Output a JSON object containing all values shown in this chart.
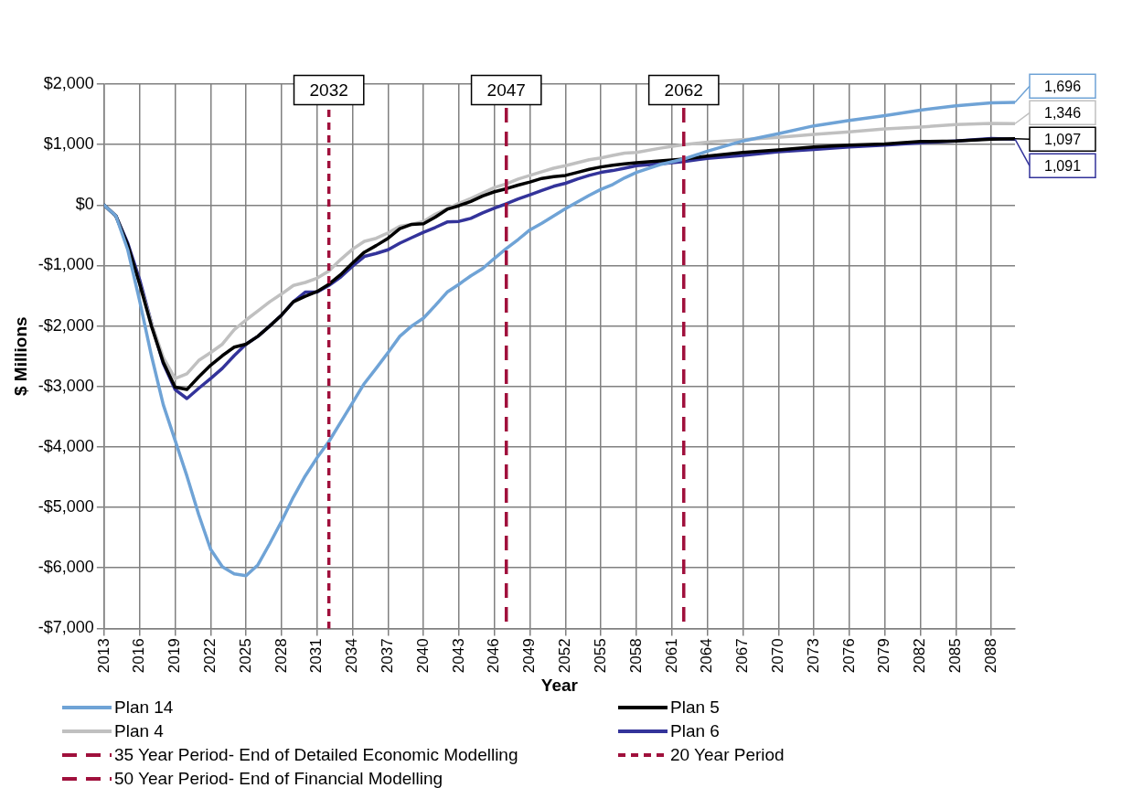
{
  "chart_data": {
    "type": "line",
    "xlabel": "Year",
    "ylabel": "$ Millions",
    "x": [
      2013,
      2014,
      2015,
      2016,
      2017,
      2018,
      2019,
      2020,
      2021,
      2022,
      2023,
      2024,
      2025,
      2026,
      2027,
      2028,
      2029,
      2030,
      2031,
      2032,
      2033,
      2034,
      2035,
      2036,
      2037,
      2038,
      2039,
      2040,
      2041,
      2042,
      2043,
      2044,
      2045,
      2046,
      2047,
      2048,
      2049,
      2050,
      2051,
      2052,
      2053,
      2054,
      2055,
      2056,
      2057,
      2058,
      2060,
      2062,
      2064,
      2067,
      2070,
      2073,
      2076,
      2079,
      2082,
      2085,
      2088,
      2090
    ],
    "series": [
      {
        "name": "Plan 14",
        "color": "#6fa3d6",
        "values": [
          0,
          -180,
          -740,
          -1580,
          -2490,
          -3300,
          -3890,
          -4480,
          -5120,
          -5690,
          -5980,
          -6100,
          -6130,
          -5950,
          -5600,
          -5230,
          -4830,
          -4480,
          -4180,
          -3910,
          -3590,
          -3270,
          -2950,
          -2700,
          -2440,
          -2170,
          -2000,
          -1870,
          -1660,
          -1440,
          -1310,
          -1170,
          -1050,
          -880,
          -720,
          -570,
          -410,
          -300,
          -180,
          -60,
          50,
          160,
          260,
          340,
          450,
          540,
          670,
          760,
          890,
          1060,
          1180,
          1310,
          1400,
          1480,
          1570,
          1640,
          1690,
          1696
        ],
        "value_labels": [
          null,
          null,
          null,
          null,
          null,
          null,
          null,
          null,
          null,
          null,
          null,
          null,
          null,
          null,
          null,
          null,
          null,
          null,
          null,
          null,
          null,
          null,
          null,
          null,
          null,
          null,
          null,
          null,
          null,
          null,
          null,
          null,
          null,
          null,
          null,
          null,
          null,
          null,
          null,
          null,
          null,
          null,
          null,
          null,
          null,
          null,
          null,
          null,
          null,
          null,
          null,
          null,
          null,
          null,
          null,
          null,
          null,
          "1,696"
        ]
      },
      {
        "name": "Plan 5",
        "color": "#000000",
        "values": [
          0,
          -180,
          -660,
          -1300,
          -2000,
          -2600,
          -3010,
          -3050,
          -2840,
          -2650,
          -2490,
          -2350,
          -2300,
          -2170,
          -2000,
          -1820,
          -1600,
          -1510,
          -1430,
          -1310,
          -1150,
          -960,
          -780,
          -670,
          -550,
          -390,
          -320,
          -310,
          -200,
          -70,
          -10,
          60,
          150,
          220,
          270,
          330,
          380,
          440,
          470,
          490,
          540,
          590,
          630,
          660,
          680,
          700,
          730,
          760,
          810,
          870,
          910,
          960,
          990,
          1010,
          1050,
          1060,
          1090,
          1097
        ],
        "value_labels": [
          null,
          null,
          null,
          null,
          null,
          null,
          null,
          null,
          null,
          null,
          null,
          null,
          null,
          null,
          null,
          null,
          null,
          null,
          null,
          null,
          null,
          null,
          null,
          null,
          null,
          null,
          null,
          null,
          null,
          null,
          null,
          null,
          null,
          null,
          null,
          null,
          null,
          null,
          null,
          null,
          null,
          null,
          null,
          null,
          null,
          null,
          null,
          null,
          null,
          null,
          null,
          null,
          null,
          null,
          null,
          null,
          null,
          "1,097"
        ]
      },
      {
        "name": "Plan 4",
        "color": "#c0c0c0",
        "values": [
          0,
          -180,
          -690,
          -1300,
          -1950,
          -2520,
          -2870,
          -2790,
          -2570,
          -2440,
          -2300,
          -2060,
          -1900,
          -1750,
          -1600,
          -1470,
          -1330,
          -1280,
          -1210,
          -1090,
          -900,
          -730,
          -600,
          -550,
          -460,
          -350,
          -320,
          -270,
          -150,
          -60,
          30,
          110,
          200,
          290,
          350,
          430,
          490,
          550,
          610,
          650,
          700,
          750,
          780,
          820,
          860,
          870,
          940,
          1000,
          1040,
          1080,
          1120,
          1170,
          1210,
          1260,
          1290,
          1330,
          1350,
          1346
        ],
        "value_labels": [
          null,
          null,
          null,
          null,
          null,
          null,
          null,
          null,
          null,
          null,
          null,
          null,
          null,
          null,
          null,
          null,
          null,
          null,
          null,
          null,
          null,
          null,
          null,
          null,
          null,
          null,
          null,
          null,
          null,
          null,
          null,
          null,
          null,
          null,
          null,
          null,
          null,
          null,
          null,
          null,
          null,
          null,
          null,
          null,
          null,
          null,
          null,
          null,
          null,
          null,
          null,
          null,
          null,
          null,
          null,
          null,
          null,
          "1,346"
        ]
      },
      {
        "name": "Plan 6",
        "color": "#33339a",
        "values": [
          0,
          -180,
          -630,
          -1230,
          -1950,
          -2620,
          -3050,
          -3200,
          -3030,
          -2870,
          -2700,
          -2490,
          -2300,
          -2170,
          -2000,
          -1820,
          -1600,
          -1440,
          -1440,
          -1330,
          -1190,
          -1010,
          -850,
          -800,
          -740,
          -630,
          -540,
          -450,
          -370,
          -280,
          -270,
          -220,
          -130,
          -50,
          20,
          100,
          170,
          240,
          310,
          360,
          430,
          490,
          540,
          570,
          610,
          650,
          680,
          720,
          770,
          820,
          880,
          920,
          960,
          990,
          1030,
          1060,
          1100,
          1091
        ],
        "value_labels": [
          null,
          null,
          null,
          null,
          null,
          null,
          null,
          null,
          null,
          null,
          null,
          null,
          null,
          null,
          null,
          null,
          null,
          null,
          null,
          null,
          null,
          null,
          null,
          null,
          null,
          null,
          null,
          null,
          null,
          null,
          null,
          null,
          null,
          null,
          null,
          null,
          null,
          null,
          null,
          null,
          null,
          null,
          null,
          null,
          null,
          null,
          null,
          null,
          null,
          null,
          null,
          null,
          null,
          null,
          null,
          null,
          null,
          "1,091"
        ]
      }
    ],
    "ref_lines": [
      {
        "axis": "x",
        "value": 2047,
        "label": "35 Year Period- End of Detailed Economic Modelling",
        "color": "#a0103c",
        "line_style": "dashed"
      },
      {
        "axis": "x",
        "value": 2032,
        "label": "20 Year Period",
        "color": "#a0103c",
        "line_style": "dotted"
      },
      {
        "axis": "x",
        "value": 2062,
        "label": "50 Year Period- End of Financial Modelling",
        "color": "#a0103c",
        "line_style": "dashed"
      }
    ],
    "annotations": [
      {
        "text": "2032",
        "x": 2032,
        "y": 1900
      },
      {
        "text": "2047",
        "x": 2047,
        "y": 1900
      },
      {
        "text": "2062",
        "x": 2062,
        "y": 1900
      }
    ],
    "xlim": [
      2013,
      2090
    ],
    "xticks": [
      2013,
      2016,
      2019,
      2022,
      2025,
      2028,
      2031,
      2034,
      2037,
      2040,
      2043,
      2046,
      2049,
      2052,
      2055,
      2058,
      2061,
      2064,
      2067,
      2070,
      2073,
      2076,
      2079,
      2082,
      2085,
      2088
    ],
    "ylim": [
      -7000,
      2000
    ],
    "yticks": [
      {
        "value": -7000,
        "label": "-$7,000"
      },
      {
        "value": -6000,
        "label": "-$6,000"
      },
      {
        "value": -5000,
        "label": "-$5,000"
      },
      {
        "value": -4000,
        "label": "-$4,000"
      },
      {
        "value": -3000,
        "label": "-$3,000"
      },
      {
        "value": -2000,
        "label": "-$2,000"
      },
      {
        "value": -1000,
        "label": "-$1,000"
      },
      {
        "value": 0,
        "label": "$0"
      },
      {
        "value": 1000,
        "label": "$1,000"
      },
      {
        "value": 2000,
        "label": "$2,000"
      }
    ],
    "grid": true,
    "legend": "bottom",
    "marker": "none",
    "line_style": "solid"
  }
}
